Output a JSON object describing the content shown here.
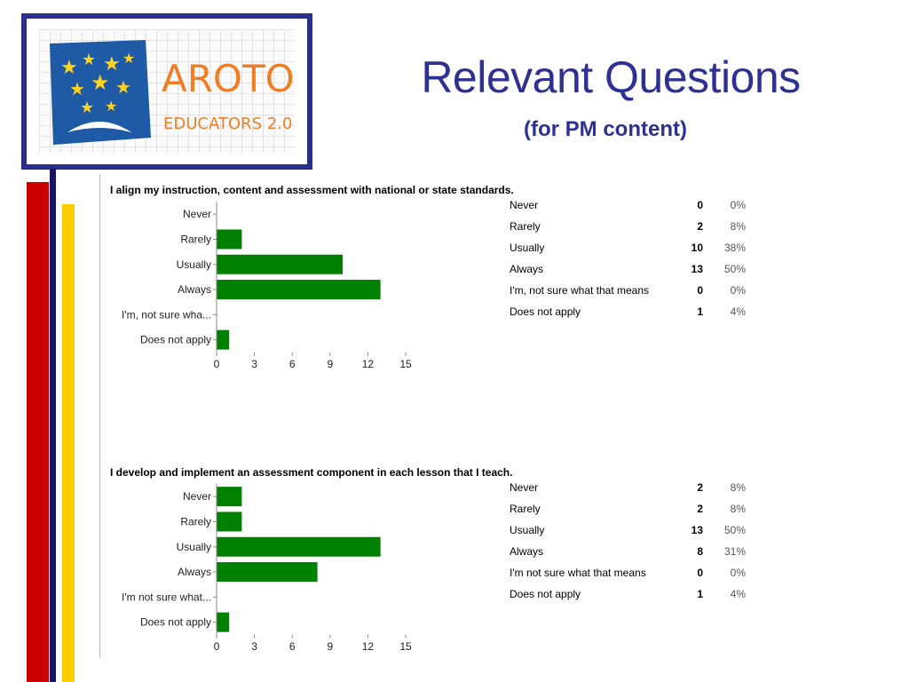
{
  "header": {
    "title": "Relevant Questions",
    "subtitle": "(for PM content)"
  },
  "logo": {
    "word": "AROTO",
    "tagline": "EDUCATORS 2.0"
  },
  "colors": {
    "title": "#2e3192",
    "bar": "#008000",
    "frame": "#2b2f8c",
    "accent_red": "#cc0000",
    "accent_navy": "#1b1464",
    "accent_yellow": "#ffcc00",
    "logo_orange": "#f07e26",
    "logo_blue": "#1f5aa6"
  },
  "surveys": [
    {
      "question": "I align my instruction, content and assessment with national or state standards.",
      "rows": [
        {
          "label": "Never",
          "count": "0",
          "percent": "0%"
        },
        {
          "label": "Rarely",
          "count": "2",
          "percent": "8%"
        },
        {
          "label": "Usually",
          "count": "10",
          "percent": "38%"
        },
        {
          "label": "Always",
          "count": "13",
          "percent": "50%"
        },
        {
          "label": "I'm, not sure what that means",
          "count": "0",
          "percent": "0%"
        },
        {
          "label": "Does not apply",
          "count": "1",
          "percent": "4%"
        }
      ]
    },
    {
      "question": "I develop and implement an assessment component in each lesson that I teach.",
      "rows": [
        {
          "label": "Never",
          "count": "2",
          "percent": "8%"
        },
        {
          "label": "Rarely",
          "count": "2",
          "percent": "8%"
        },
        {
          "label": "Usually",
          "count": "13",
          "percent": "50%"
        },
        {
          "label": "Always",
          "count": "8",
          "percent": "31%"
        },
        {
          "label": "I'm not sure what that means",
          "count": "0",
          "percent": "0%"
        },
        {
          "label": "Does not apply",
          "count": "1",
          "percent": "4%"
        }
      ]
    }
  ],
  "chart_data": [
    {
      "type": "bar",
      "orientation": "horizontal",
      "title": "I align my instruction, content and assessment with national or state standards.",
      "categories": [
        "Never",
        "Rarely",
        "Usually",
        "Always",
        "I'm, not sure wha...",
        "Does not apply"
      ],
      "values": [
        0,
        2,
        10,
        13,
        0,
        1
      ],
      "xlim": [
        0,
        15
      ],
      "xticks": [
        "0",
        "3",
        "6",
        "9",
        "12",
        "15"
      ],
      "grid": false,
      "legend": "none"
    },
    {
      "type": "bar",
      "orientation": "horizontal",
      "title": "I develop and implement an assessment component in each lesson that I teach.",
      "categories": [
        "Never",
        "Rarely",
        "Usually",
        "Always",
        "I'm not sure what...",
        "Does not apply"
      ],
      "values": [
        2,
        2,
        13,
        8,
        0,
        1
      ],
      "xlim": [
        0,
        15
      ],
      "xticks": [
        "0",
        "3",
        "6",
        "9",
        "12",
        "15"
      ],
      "grid": false,
      "legend": "none"
    }
  ]
}
